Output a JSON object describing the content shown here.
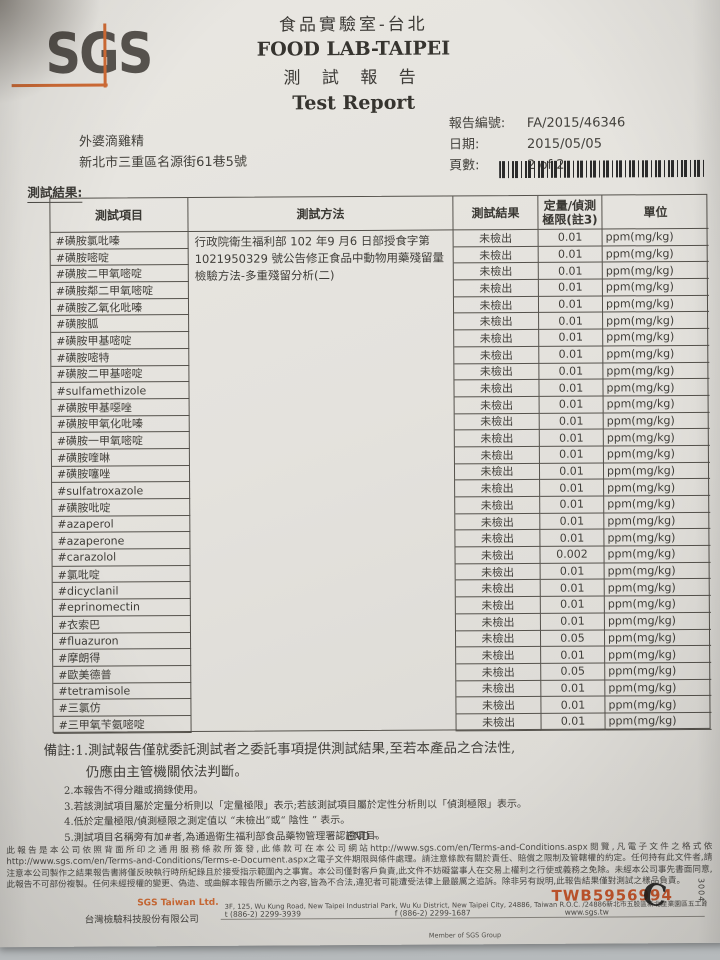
{
  "header": {
    "logo_text": "SGS",
    "lab_name_zh": "食品實驗室-台北",
    "lab_name_en": "FOOD LAB-TAIPEI",
    "report_title_zh": "測 試 報 告",
    "report_title_en": "Test Report",
    "client_name": "外婆滴雞精",
    "client_address": "新北市三重區名源街61巷5號",
    "report_no_label": "報告編號:",
    "report_no": "FA/2015/46346",
    "date_label": "日期:",
    "date": "2015/05/05",
    "pages_label": "頁數:",
    "pages": "2 of 2"
  },
  "results_label": "測試結果:",
  "table": {
    "headers": {
      "item": "測試項目",
      "method": "測試方法",
      "result": "測試結果",
      "limit_line1": "定量/偵測",
      "limit_line2": "極限(註3)",
      "unit": "單位"
    },
    "method_text": "行政院衛生福利部 102 年9 月6 日部授食字第 1021950329 號公告修正食品中動物用藥殘留量檢驗方法-多重殘留分析(二)",
    "rows": [
      {
        "item": "#磺胺氯吡嗪",
        "result": "未檢出",
        "limit": "0.01",
        "unit": "ppm(mg/kg)"
      },
      {
        "item": "#磺胺嘧啶",
        "result": "未檢出",
        "limit": "0.01",
        "unit": "ppm(mg/kg)"
      },
      {
        "item": "#磺胺二甲氧嘧啶",
        "result": "未檢出",
        "limit": "0.01",
        "unit": "ppm(mg/kg)"
      },
      {
        "item": "#磺胺鄰二甲氧嘧啶",
        "result": "未檢出",
        "limit": "0.01",
        "unit": "ppm(mg/kg)"
      },
      {
        "item": "#磺胺乙氧化吡嗪",
        "result": "未檢出",
        "limit": "0.01",
        "unit": "ppm(mg/kg)"
      },
      {
        "item": "#磺胺胍",
        "result": "未檢出",
        "limit": "0.01",
        "unit": "ppm(mg/kg)"
      },
      {
        "item": "#磺胺甲基嘧啶",
        "result": "未檢出",
        "limit": "0.01",
        "unit": "ppm(mg/kg)"
      },
      {
        "item": "#磺胺嘧特",
        "result": "未檢出",
        "limit": "0.01",
        "unit": "ppm(mg/kg)"
      },
      {
        "item": "#磺胺二甲基嘧啶",
        "result": "未檢出",
        "limit": "0.01",
        "unit": "ppm(mg/kg)"
      },
      {
        "item": "#sulfamethizole",
        "result": "未檢出",
        "limit": "0.01",
        "unit": "ppm(mg/kg)"
      },
      {
        "item": "#磺胺甲基噁唑",
        "result": "未檢出",
        "limit": "0.01",
        "unit": "ppm(mg/kg)"
      },
      {
        "item": "#磺胺甲氧化吡嗪",
        "result": "未檢出",
        "limit": "0.01",
        "unit": "ppm(mg/kg)"
      },
      {
        "item": "#磺胺一甲氧嘧啶",
        "result": "未檢出",
        "limit": "0.01",
        "unit": "ppm(mg/kg)"
      },
      {
        "item": "#磺胺喹啉",
        "result": "未檢出",
        "limit": "0.01",
        "unit": "ppm(mg/kg)"
      },
      {
        "item": "#磺胺噻唑",
        "result": "未檢出",
        "limit": "0.01",
        "unit": "ppm(mg/kg)"
      },
      {
        "item": "#sulfatroxazole",
        "result": "未檢出",
        "limit": "0.01",
        "unit": "ppm(mg/kg)"
      },
      {
        "item": "#磺胺吡啶",
        "result": "未檢出",
        "limit": "0.01",
        "unit": "ppm(mg/kg)"
      },
      {
        "item": "#azaperol",
        "result": "未檢出",
        "limit": "0.01",
        "unit": "ppm(mg/kg)"
      },
      {
        "item": "#azaperone",
        "result": "未檢出",
        "limit": "0.01",
        "unit": "ppm(mg/kg)"
      },
      {
        "item": "#carazolol",
        "result": "未檢出",
        "limit": "0.002",
        "unit": "ppm(mg/kg)"
      },
      {
        "item": "#氯吡啶",
        "result": "未檢出",
        "limit": "0.01",
        "unit": "ppm(mg/kg)"
      },
      {
        "item": "#dicyclanil",
        "result": "未檢出",
        "limit": "0.01",
        "unit": "ppm(mg/kg)"
      },
      {
        "item": "#eprinomectin",
        "result": "未檢出",
        "limit": "0.01",
        "unit": "ppm(mg/kg)"
      },
      {
        "item": "#衣索巴",
        "result": "未檢出",
        "limit": "0.01",
        "unit": "ppm(mg/kg)"
      },
      {
        "item": "#fluazuron",
        "result": "未檢出",
        "limit": "0.05",
        "unit": "ppm(mg/kg)"
      },
      {
        "item": "#摩朗得",
        "result": "未檢出",
        "limit": "0.01",
        "unit": "ppm(mg/kg)"
      },
      {
        "item": "#歐美德普",
        "result": "未檢出",
        "limit": "0.05",
        "unit": "ppm(mg/kg)"
      },
      {
        "item": "#tetramisole",
        "result": "未檢出",
        "limit": "0.01",
        "unit": "ppm(mg/kg)"
      },
      {
        "item": "#三氯仿",
        "result": "未檢出",
        "limit": "0.01",
        "unit": "ppm(mg/kg)"
      },
      {
        "item": "#三甲氧苄氨嘧啶",
        "result": "未檢出",
        "limit": "0.01",
        "unit": "ppm(mg/kg)"
      }
    ]
  },
  "notes": [
    "備註:1.測試報告僅就委託測試者之委託事項提供測試結果,至若本產品之合法性,",
    "仍應由主管機關依法判斷。",
    "2.本報告不得分離或摘錄使用。",
    "3.若該測試項目屬於定量分析則以「定量極限」表示;若該測試項目屬於定性分析則以「偵測極限」表示。",
    "4.低於定量極限/偵測極限之測定值以 “未檢出”或“ 陰性 ” 表示。",
    "5.測試項目名稱旁有加#者,為通過衛生福利部食品藥物管理署認證項目。"
  ],
  "end_marker": "- END -",
  "legal_text": "此報告是本公司依照背面所印之通用服務條款所簽發,此條款可在本公司網站http://www.sgs.com/en/Terms-and-Conditions.aspx閱覽,凡電子文件之格式依http://www.sgs.com/en/Terms-and-Conditions/Terms-e-Document.aspx之電子文件期限與條件處理。請注意條款有關於責任、賠償之限制及管轄權的約定。任何持有此文件者,請注意本公司製作之結果報告書將僅反映執行時所紀錄且於接受指示範圍內之事實。本公司僅對客戶負責,此文件不妨礙當事人在交易上權利之行使或義務之免除。未經本公司事先書面同意,此報告不可部份複製。任何未經授權的變更、偽造、或曲解本報告所顯示之內容,皆為不合法,違犯者可能遭受法律上最嚴厲之追訴。除非另有說明,此報告結果僅對測試之樣品負責。",
  "footer": {
    "company_en": "SGS Taiwan Ltd.",
    "company_zh": "台灣檢驗科技股份有限公司",
    "address": "3F, 125, Wu Kung Road, New Taipei Industrial Park, Wu Ku District, New Taipei City, 24886, Taiwan R.O.C. /24886新北市五股區新北產業園區五工路125號3樓",
    "tel": "t (886-2) 2299-3939",
    "fax": "f (886-2) 2299-1687",
    "web": "www.sgs.tw",
    "member": "Member of SGS Group"
  },
  "stamp": {
    "code": "TWB5956994",
    "stamp_letter": "C",
    "side_number": "3004"
  },
  "colors": {
    "accent_orange": "#cf6b35",
    "stamp_orange_red": "#c2552c",
    "paper": "#e4e2dd",
    "ink": "#403e39"
  }
}
